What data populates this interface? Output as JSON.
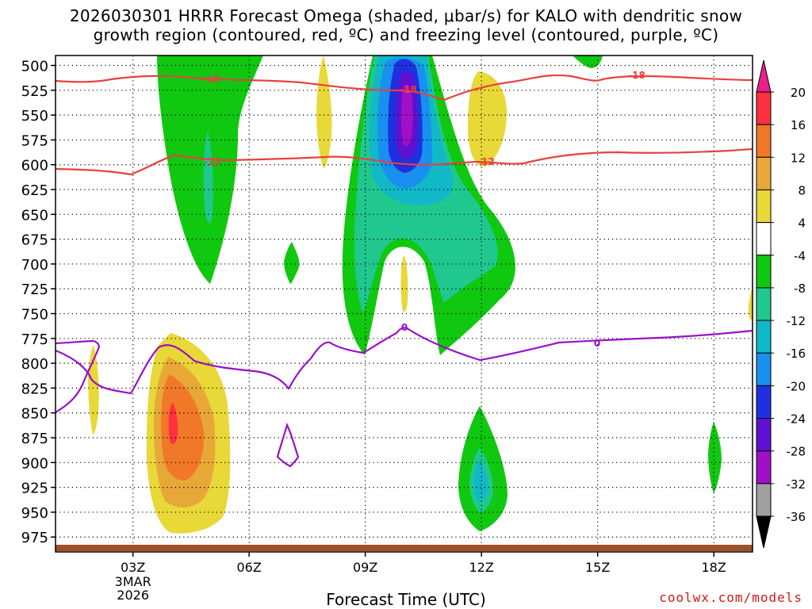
{
  "chart_data": {
    "type": "contour",
    "title_line1": "2026030301 HRRR Forecast Omega (shaded, μbar/s) for KALO with dendritic snow",
    "title_line2": "growth region (contoured, red, ºC) and freezing level (contoured, purple, ºC)",
    "xlabel": "Forecast Time (UTC)",
    "credit": "coolwx.com/models",
    "x_ticks": [
      {
        "hour": 3,
        "label": "03Z",
        "sub": [
          "3MAR",
          "2026"
        ]
      },
      {
        "hour": 6,
        "label": "06Z",
        "sub": []
      },
      {
        "hour": 9,
        "label": "09Z",
        "sub": []
      },
      {
        "hour": 12,
        "label": "12Z",
        "sub": []
      },
      {
        "hour": 15,
        "label": "15Z",
        "sub": []
      },
      {
        "hour": 18,
        "label": "18Z",
        "sub": []
      }
    ],
    "x_range_hours": [
      1,
      19
    ],
    "y_levels_hpa": [
      500,
      525,
      550,
      575,
      600,
      625,
      650,
      675,
      700,
      725,
      750,
      775,
      800,
      825,
      850,
      875,
      900,
      925,
      950,
      975
    ],
    "y_range_hpa": [
      490,
      990
    ],
    "colorbar": {
      "labels": [
        "20",
        "16",
        "12",
        "8",
        "4",
        "-4",
        "-8",
        "-12",
        "-16",
        "-20",
        "-24",
        "-28",
        "-32",
        "-36"
      ],
      "bands": [
        {
          "from": 16,
          "to": 20,
          "color": "#ff3040"
        },
        {
          "from": 12,
          "to": 16,
          "color": "#f07828"
        },
        {
          "from": 8,
          "to": 12,
          "color": "#e8a838"
        },
        {
          "from": 4,
          "to": 8,
          "color": "#e8d838"
        },
        {
          "from": -4,
          "to": 4,
          "color": "#ffffff"
        },
        {
          "from": -8,
          "to": -4,
          "color": "#10c810"
        },
        {
          "from": -12,
          "to": -8,
          "color": "#20c890"
        },
        {
          "from": -16,
          "to": -12,
          "color": "#10b8c8"
        },
        {
          "from": -20,
          "to": -16,
          "color": "#1890f0"
        },
        {
          "from": -24,
          "to": -20,
          "color": "#2030e0"
        },
        {
          "from": -28,
          "to": -24,
          "color": "#6010d0"
        },
        {
          "from": -32,
          "to": -28,
          "color": "#a010c8"
        },
        {
          "from": -36,
          "to": -32,
          "color": "#a0a0a0"
        }
      ],
      "top_color": "#e8208a",
      "bottom_color": "#000000"
    },
    "contours": [
      {
        "name": "-18C dendritic growth top",
        "color": "#e84040",
        "label": "-18"
      },
      {
        "name": "-12C dendritic growth bottom",
        "color": "#e84040",
        "label": "-12"
      },
      {
        "name": "0C freezing level",
        "color": "#9a10c8",
        "label": "0"
      }
    ]
  }
}
